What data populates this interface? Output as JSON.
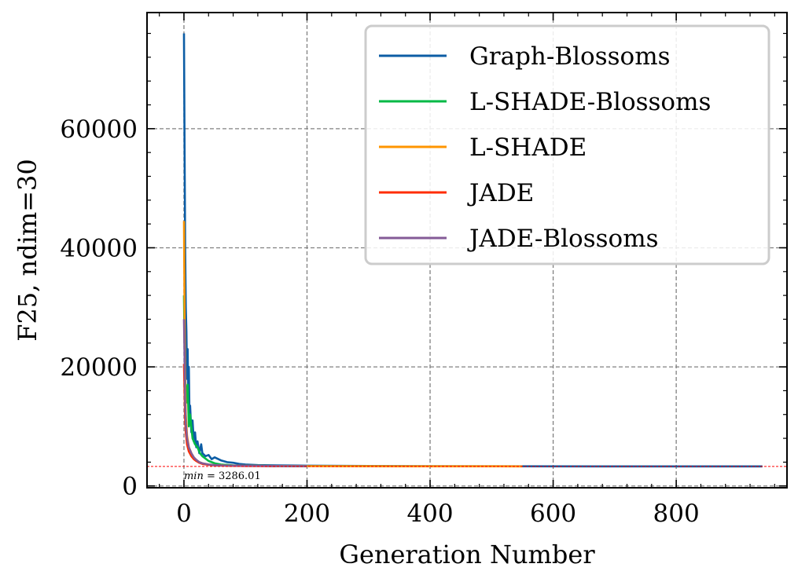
{
  "chart_data": {
    "type": "line",
    "title": "",
    "xlabel": "Generation Number",
    "ylabel": "F25, ndim=30",
    "xlim": [
      -60,
      980
    ],
    "ylim": [
      -300,
      79500
    ],
    "xticks": [
      0,
      200,
      400,
      600,
      800
    ],
    "xtick_labels": [
      "0",
      "200",
      "400",
      "600",
      "800"
    ],
    "yticks": [
      0,
      20000,
      40000,
      60000
    ],
    "ytick_labels": [
      "0",
      "20000",
      "40000",
      "60000"
    ],
    "grid": true,
    "legend_position": "top-right",
    "min_line": {
      "value": 3286.01,
      "label_var": "min",
      "label_rest": " = 3286.01",
      "color": "#ff0000"
    },
    "series": [
      {
        "name": "Graph-Blossoms",
        "color": "#0c5da5",
        "x": [
          0,
          1,
          2,
          3,
          4,
          5,
          6,
          7,
          8,
          9,
          10,
          12,
          14,
          16,
          18,
          20,
          22,
          25,
          28,
          30,
          35,
          40,
          45,
          50,
          60,
          70,
          80,
          90,
          100,
          120,
          150,
          200,
          300,
          400,
          550,
          700,
          940
        ],
        "y": [
          76000,
          58000,
          40000,
          30000,
          26000,
          18000,
          23000,
          15000,
          20000,
          12000,
          13500,
          9000,
          11000,
          7500,
          9000,
          6500,
          7500,
          5500,
          7000,
          5500,
          5000,
          5200,
          4500,
          4800,
          4300,
          4000,
          3900,
          3700,
          3600,
          3500,
          3450,
          3400,
          3350,
          3320,
          3300,
          3290,
          3286
        ]
      },
      {
        "name": "L-SHADE-Blossoms",
        "color": "#00b945",
        "x": [
          0,
          1,
          2,
          4,
          6,
          8,
          10,
          14,
          18,
          22,
          26,
          30,
          40,
          50,
          60,
          80,
          100,
          150,
          200
        ],
        "y": [
          32000,
          24000,
          18000,
          14000,
          17000,
          10000,
          12000,
          8000,
          7000,
          6500,
          5500,
          5000,
          4200,
          3800,
          3600,
          3450,
          3400,
          3350,
          3320
        ]
      },
      {
        "name": "L-SHADE",
        "color": "#ff9500",
        "x": [
          0,
          1,
          2,
          3,
          5,
          8,
          12,
          16,
          20,
          25,
          30,
          40,
          50,
          70,
          100,
          150,
          200,
          250,
          300,
          400,
          500,
          550
        ],
        "y": [
          44500,
          30000,
          18000,
          12000,
          8500,
          6500,
          5500,
          4800,
          4300,
          4000,
          3800,
          3600,
          3500,
          3420,
          3380,
          3350,
          3330,
          3320,
          3310,
          3300,
          3295,
          3290
        ]
      },
      {
        "name": "JADE",
        "color": "#ff2c00",
        "x": [
          0,
          1,
          2,
          3,
          5,
          8,
          12,
          16,
          20,
          25,
          30,
          40,
          50,
          70,
          100,
          150
        ],
        "y": [
          20500,
          16000,
          11000,
          9000,
          7000,
          5800,
          5000,
          4500,
          4200,
          3900,
          3700,
          3550,
          3450,
          3400,
          3360,
          3330
        ]
      },
      {
        "name": "JADE-Blossoms",
        "color": "#845b97",
        "x": [
          0,
          1,
          2,
          3,
          5,
          8,
          12,
          16,
          20,
          25,
          30,
          40,
          50,
          70,
          100,
          150,
          200
        ],
        "y": [
          28000,
          22000,
          14000,
          10500,
          8000,
          6500,
          5500,
          4800,
          4400,
          4000,
          3800,
          3600,
          3500,
          3420,
          3380,
          3340,
          3320
        ]
      }
    ]
  }
}
